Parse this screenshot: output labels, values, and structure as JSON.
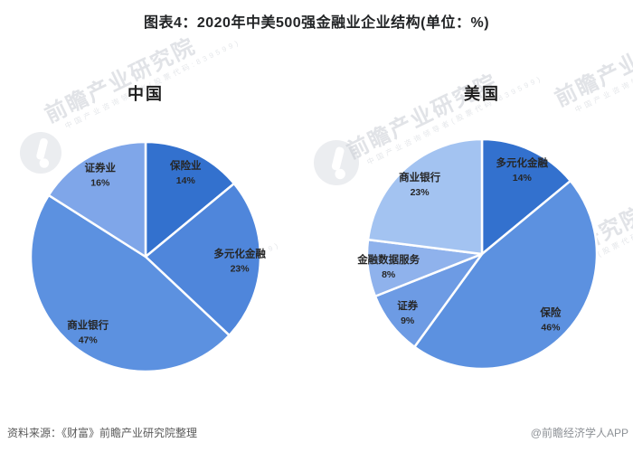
{
  "title": "图表4：2020年中美500强金融业企业结构(单位：%)",
  "footer": {
    "source_note": "资料来源：《财富》前瞻产业研究院整理",
    "credit": "@前瞻经济学人APP"
  },
  "watermark": {
    "text": "前瞻产业研究院",
    "subtext": "中国产业咨询领导者(股票代码:839599)"
  },
  "chart_data": [
    {
      "type": "pie",
      "title": "中国",
      "unit": "%",
      "start_angle_deg": 0,
      "direction": "clockwise",
      "legend_position": "inside-labels",
      "labels": [
        "保险业",
        "多元化金融",
        "商业银行",
        "证券业"
      ],
      "values": [
        14,
        23,
        47,
        16
      ],
      "colors": [
        "#3371CE",
        "#4F86DB",
        "#5C91E0",
        "#7FA6E9"
      ]
    },
    {
      "type": "pie",
      "title": "美国",
      "unit": "%",
      "start_angle_deg": 0,
      "direction": "clockwise",
      "legend_position": "inside-labels",
      "labels": [
        "多元化金融",
        "保险",
        "证券",
        "金融数据服务",
        "商业银行"
      ],
      "values": [
        14,
        46,
        9,
        8,
        23
      ],
      "colors": [
        "#3371CE",
        "#5C91E0",
        "#6D9BE4",
        "#8FB2EC",
        "#A3C3F1"
      ]
    }
  ]
}
